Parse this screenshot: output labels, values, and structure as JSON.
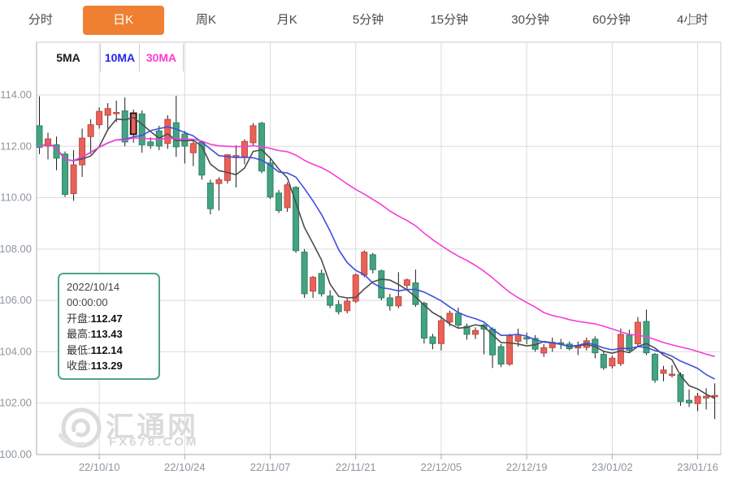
{
  "tab_bar": {
    "tabs": [
      {
        "label": "分时",
        "active": false
      },
      {
        "label": "日K",
        "active": true
      },
      {
        "label": "周K",
        "active": false
      },
      {
        "label": "月K",
        "active": false
      },
      {
        "label": "5分钟",
        "active": false
      },
      {
        "label": "15分钟",
        "active": false
      },
      {
        "label": "30分钟",
        "active": false
      },
      {
        "label": "60分钟",
        "active": false
      },
      {
        "label": "4小时",
        "active": false
      }
    ]
  },
  "legend": {
    "items": [
      {
        "label": "5MA",
        "color": "#1a1a1a"
      },
      {
        "label": "10MA",
        "color": "#2525EB"
      },
      {
        "label": "30MA",
        "color": "#FB3BD3"
      }
    ]
  },
  "tooltip": {
    "date": "2022/10/14",
    "time": "00:00:00",
    "rows": [
      {
        "label": "开盘",
        "value": "112.47"
      },
      {
        "label": "最高",
        "value": "113.43"
      },
      {
        "label": "最低",
        "value": "112.14"
      },
      {
        "label": "收盘",
        "value": "113.29"
      }
    ]
  },
  "watermark": {
    "title": "汇通网",
    "subtitle": "FX678.COM"
  },
  "colors": {
    "tab_active_bg": "#EF8032",
    "up_fill": "#EA6157",
    "up_stroke": "#BE4A43",
    "down_fill": "#44A381",
    "down_stroke": "#2C8363",
    "wick": "#1b1b1b",
    "selected_stroke": "#111111",
    "ma5": "#4d4d4d",
    "ma10": "#3D4FE0",
    "ma30": "#F53DD7",
    "grid": "#DBDBDB",
    "frame": "#C9C9C9",
    "axis": "#AAAAAA",
    "axis_text": "#8C959D",
    "tooltip_border": "#4FA583"
  },
  "chart_data": {
    "type": "candlestick",
    "title": "",
    "ylim": [
      100,
      114
    ],
    "y_ticks": [
      114,
      112,
      110,
      108,
      106,
      104,
      102,
      100
    ],
    "y_tick_labels": [
      "114.00",
      "112.00",
      "110.00",
      "108.00",
      "106.00",
      "104.00",
      "102.00",
      "100.00"
    ],
    "x_tick_labels": [
      "22/10/10",
      "22/10/24",
      "22/11/07",
      "22/11/21",
      "22/12/05",
      "22/12/19",
      "23/01/02",
      "23/01/16"
    ],
    "x_tick_indices": [
      7,
      17,
      27,
      37,
      47,
      57,
      67,
      77
    ],
    "selected_index": 11,
    "selected_candle": {
      "open": 112.47,
      "high": 113.43,
      "low": 112.14,
      "close": 113.29,
      "date": "2022/10/14"
    },
    "ma_periods": [
      5,
      10,
      30
    ],
    "legend_position": "top-left",
    "grid": true,
    "candles_ohlc": [
      [
        112.8,
        113.95,
        111.7,
        111.96
      ],
      [
        112.01,
        112.53,
        111.49,
        112.29
      ],
      [
        112.06,
        112.38,
        111.07,
        111.54
      ],
      [
        111.7,
        111.8,
        110.03,
        110.13
      ],
      [
        110.16,
        111.85,
        109.88,
        111.28
      ],
      [
        111.28,
        112.69,
        110.81,
        112.32
      ],
      [
        112.38,
        113.05,
        111.7,
        112.84
      ],
      [
        112.84,
        113.52,
        112.69,
        113.36
      ],
      [
        113.21,
        113.68,
        112.66,
        113.47
      ],
      [
        113.3,
        113.78,
        112.95,
        113.32
      ],
      [
        113.38,
        113.9,
        112.0,
        112.17
      ],
      [
        112.47,
        113.43,
        112.14,
        113.29
      ],
      [
        113.26,
        113.4,
        111.75,
        112.06
      ],
      [
        112.17,
        112.35,
        111.9,
        112.03
      ],
      [
        112.6,
        112.8,
        111.85,
        112.01
      ],
      [
        112.11,
        113.21,
        111.9,
        113.05
      ],
      [
        112.92,
        113.97,
        111.59,
        111.98
      ],
      [
        112.48,
        112.6,
        111.33,
        112.01
      ],
      [
        111.75,
        112.22,
        111.23,
        112.11
      ],
      [
        112.17,
        112.2,
        110.7,
        110.88
      ],
      [
        110.57,
        110.7,
        109.35,
        109.57
      ],
      [
        110.55,
        110.8,
        109.5,
        110.7
      ],
      [
        110.67,
        111.7,
        110.55,
        111.67
      ],
      [
        111.62,
        112.04,
        110.4,
        111.64
      ],
      [
        111.56,
        112.27,
        111.3,
        112.19
      ],
      [
        112.14,
        112.9,
        112.0,
        112.8
      ],
      [
        112.9,
        112.95,
        110.95,
        111.04
      ],
      [
        111.35,
        111.5,
        109.95,
        110.03
      ],
      [
        110.18,
        110.3,
        109.4,
        109.5
      ],
      [
        109.61,
        110.6,
        109.45,
        110.5
      ],
      [
        110.4,
        110.45,
        107.85,
        107.94
      ],
      [
        107.88,
        108.0,
        106.1,
        106.26
      ],
      [
        106.36,
        106.95,
        106.1,
        106.9
      ],
      [
        107.05,
        107.2,
        106.15,
        106.26
      ],
      [
        106.17,
        106.4,
        105.7,
        105.81
      ],
      [
        105.84,
        106.0,
        105.45,
        105.56
      ],
      [
        105.6,
        106.1,
        105.5,
        105.97
      ],
      [
        105.97,
        107.05,
        105.9,
        106.99
      ],
      [
        106.99,
        107.95,
        106.9,
        107.88
      ],
      [
        107.78,
        107.85,
        107.05,
        107.2
      ],
      [
        107.15,
        107.2,
        106.0,
        106.1
      ],
      [
        106.1,
        106.25,
        105.6,
        105.79
      ],
      [
        105.79,
        107.1,
        105.7,
        106.15
      ],
      [
        106.59,
        106.85,
        106.4,
        106.8
      ],
      [
        106.68,
        107.2,
        105.75,
        105.84
      ],
      [
        105.89,
        105.95,
        104.32,
        104.53
      ],
      [
        104.58,
        104.7,
        104.1,
        104.32
      ],
      [
        104.32,
        105.4,
        104.05,
        105.21
      ],
      [
        105.16,
        105.6,
        105.0,
        105.5
      ],
      [
        105.5,
        105.72,
        104.95,
        105.04
      ],
      [
        104.99,
        105.1,
        104.47,
        104.68
      ],
      [
        104.68,
        104.95,
        104.5,
        104.83
      ],
      [
        105.04,
        105.1,
        103.9,
        104.88
      ],
      [
        104.88,
        104.95,
        103.37,
        103.88
      ],
      [
        104.2,
        104.3,
        103.4,
        103.52
      ],
      [
        103.52,
        104.7,
        103.45,
        104.62
      ],
      [
        104.41,
        104.9,
        104.2,
        104.62
      ],
      [
        104.55,
        104.75,
        104.3,
        104.5
      ],
      [
        104.52,
        104.65,
        104.0,
        104.1
      ],
      [
        103.95,
        104.3,
        103.8,
        104.16
      ],
      [
        104.16,
        104.55,
        104.0,
        104.37
      ],
      [
        104.35,
        104.5,
        104.1,
        104.3
      ],
      [
        104.3,
        104.4,
        104.05,
        104.12
      ],
      [
        104.17,
        104.4,
        103.87,
        104.2
      ],
      [
        104.17,
        104.55,
        104.05,
        104.43
      ],
      [
        104.49,
        104.6,
        103.75,
        103.96
      ],
      [
        103.9,
        104.0,
        103.3,
        103.38
      ],
      [
        103.45,
        103.85,
        103.35,
        103.75
      ],
      [
        103.54,
        104.91,
        103.45,
        104.68
      ],
      [
        104.65,
        104.86,
        103.95,
        104.06
      ],
      [
        104.31,
        105.35,
        104.2,
        105.15
      ],
      [
        105.18,
        105.64,
        103.87,
        103.96
      ],
      [
        103.9,
        103.95,
        102.79,
        102.9
      ],
      [
        103.16,
        103.45,
        102.85,
        103.29
      ],
      [
        103.11,
        103.48,
        103.0,
        103.13
      ],
      [
        103.11,
        103.2,
        101.9,
        102.06
      ],
      [
        102.11,
        102.53,
        101.85,
        102.01
      ],
      [
        101.98,
        102.4,
        101.69,
        102.27
      ],
      [
        102.2,
        102.58,
        101.75,
        102.27
      ],
      [
        102.29,
        102.77,
        101.38,
        102.3
      ]
    ]
  }
}
